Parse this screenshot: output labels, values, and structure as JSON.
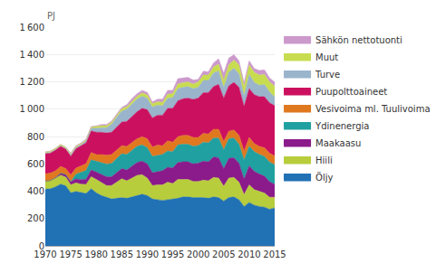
{
  "chart_data": {
    "type": "area",
    "stacked": true,
    "ylabel": "PJ",
    "x": [
      1970,
      1971,
      1972,
      1973,
      1974,
      1975,
      1976,
      1977,
      1978,
      1979,
      1980,
      1981,
      1982,
      1983,
      1984,
      1985,
      1986,
      1987,
      1988,
      1989,
      1990,
      1991,
      1992,
      1993,
      1994,
      1995,
      1996,
      1997,
      1998,
      1999,
      2000,
      2001,
      2002,
      2003,
      2004,
      2005,
      2006,
      2007,
      2008,
      2009,
      2010,
      2011,
      2012,
      2013,
      2014,
      2015
    ],
    "series": [
      {
        "name": "Öljy",
        "color": "#2171b5",
        "values": [
          415,
          418,
          432,
          452,
          440,
          388,
          398,
          388,
          383,
          418,
          388,
          368,
          353,
          343,
          348,
          353,
          348,
          358,
          368,
          378,
          368,
          343,
          338,
          333,
          338,
          343,
          348,
          358,
          358,
          353,
          353,
          353,
          348,
          358,
          353,
          328,
          353,
          358,
          338,
          288,
          318,
          298,
          288,
          283,
          268,
          278
        ]
      },
      {
        "name": "Hiili",
        "color": "#b8cd3c",
        "values": [
          58,
          60,
          63,
          66,
          63,
          58,
          63,
          63,
          66,
          88,
          98,
          93,
          88,
          98,
          118,
          138,
          128,
          138,
          148,
          143,
          128,
          98,
          108,
          113,
          128,
          113,
          138,
          128,
          128,
          118,
          118,
          128,
          128,
          143,
          143,
          108,
          143,
          143,
          128,
          88,
          128,
          113,
          108,
          103,
          88,
          78
        ]
      },
      {
        "name": "Maakaasu",
        "color": "#8b1a8b",
        "values": [
          0,
          0,
          4,
          14,
          19,
          24,
          29,
          34,
          39,
          49,
          54,
          59,
          64,
          64,
          69,
          74,
          79,
          89,
          94,
          99,
          104,
          94,
          99,
          104,
          109,
          114,
          124,
          129,
          129,
          129,
          134,
          139,
          139,
          149,
          149,
          129,
          144,
          144,
          139,
          114,
          139,
          134,
          129,
          124,
          114,
          94
        ]
      },
      {
        "name": "Ydinenergia",
        "color": "#20a0a0",
        "values": [
          0,
          0,
          0,
          0,
          0,
          0,
          34,
          54,
          64,
          74,
          79,
          89,
          94,
          99,
          104,
          109,
          114,
          114,
          119,
          119,
          119,
          119,
          119,
          119,
          119,
          119,
          129,
          129,
          129,
          129,
          129,
          139,
          139,
          139,
          144,
          139,
          144,
          144,
          139,
          139,
          144,
          144,
          144,
          144,
          144,
          144
        ]
      },
      {
        "name": "Vesivoima ml. Tuulivoima",
        "color": "#e07820",
        "values": [
          54,
          54,
          49,
          49,
          44,
          49,
          44,
          44,
          49,
          54,
          49,
          59,
          64,
          64,
          64,
          59,
          59,
          54,
          54,
          59,
          64,
          69,
          74,
          64,
          74,
          69,
          59,
          64,
          64,
          64,
          59,
          64,
          64,
          64,
          64,
          59,
          54,
          59,
          64,
          64,
          64,
          59,
          59,
          64,
          64,
          64
        ]
      },
      {
        "name": "Puupolttoaineet",
        "color": "#cc1060",
        "values": [
          148,
          148,
          153,
          148,
          143,
          138,
          143,
          148,
          153,
          158,
          163,
          163,
          163,
          163,
          168,
          173,
          183,
          193,
          198,
          208,
          213,
          213,
          218,
          223,
          238,
          248,
          263,
          268,
          273,
          278,
          288,
          298,
          303,
          313,
          328,
          318,
          333,
          348,
          353,
          328,
          358,
          358,
          363,
          373,
          368,
          368
        ]
      },
      {
        "name": "Turve",
        "color": "#9ab4cc",
        "values": [
          4,
          4,
          4,
          4,
          4,
          9,
          9,
          9,
          14,
          19,
          29,
          34,
          39,
          59,
          69,
          79,
          89,
          94,
          94,
          89,
          84,
          79,
          74,
          69,
          74,
          79,
          89,
          84,
          84,
          79,
          79,
          89,
          89,
          99,
          99,
          79,
          99,
          104,
          99,
          79,
          104,
          89,
          84,
          89,
          79,
          64
        ]
      },
      {
        "name": "Muut",
        "color": "#c8dc50",
        "values": [
          9,
          9,
          9,
          9,
          9,
          9,
          9,
          9,
          9,
          9,
          14,
          14,
          14,
          14,
          14,
          19,
          19,
          19,
          19,
          24,
          24,
          24,
          24,
          24,
          29,
          29,
          34,
          34,
          34,
          34,
          39,
          39,
          39,
          44,
          49,
          49,
          54,
          59,
          64,
          64,
          69,
          74,
          74,
          74,
          74,
          79
        ]
      },
      {
        "name": "Sähkön nettotuonti",
        "color": "#cc99cc",
        "values": [
          0,
          0,
          0,
          0,
          0,
          4,
          4,
          4,
          4,
          4,
          4,
          9,
          9,
          9,
          9,
          9,
          14,
          19,
          19,
          19,
          19,
          14,
          19,
          24,
          29,
          24,
          39,
          34,
          34,
          29,
          19,
          29,
          24,
          29,
          39,
          54,
          49,
          39,
          29,
          29,
          29,
          29,
          34,
          34,
          29,
          29
        ]
      }
    ],
    "xlim": [
      1970,
      2015
    ],
    "xticks": [
      1970,
      1975,
      1980,
      1985,
      1990,
      1995,
      2000,
      2005,
      2010,
      2015
    ],
    "ylim": [
      0,
      1600
    ],
    "yticks": [
      0,
      200,
      400,
      600,
      800,
      {
        "value": 1000,
        "label": "1 000"
      },
      {
        "value": 1200,
        "label": "1 200"
      },
      {
        "value": 1400,
        "label": "1 400"
      },
      {
        "value": 1600,
        "label": "1 600"
      }
    ],
    "grid": "y",
    "legend": "right"
  }
}
